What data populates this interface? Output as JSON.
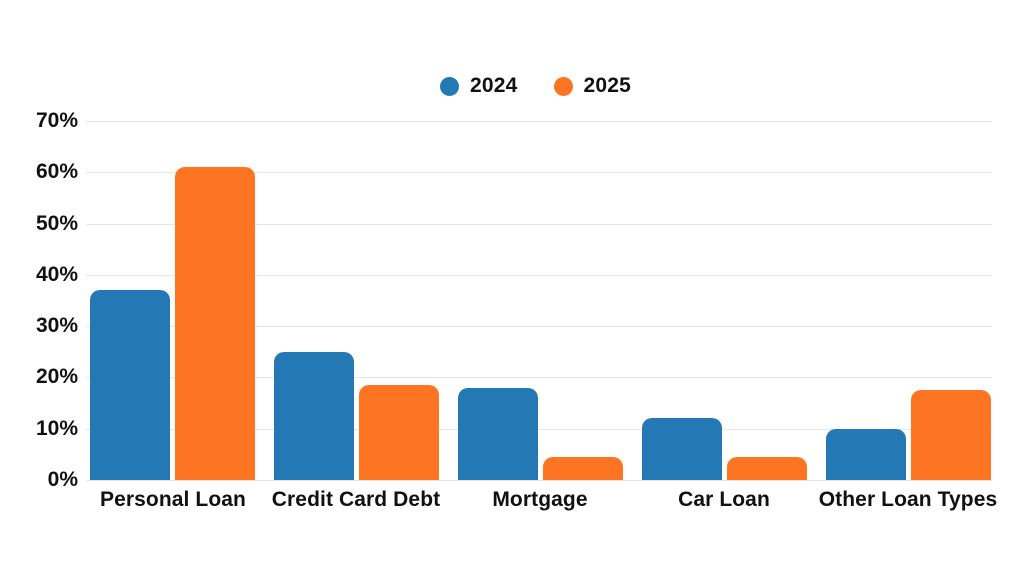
{
  "chart_data": {
    "type": "bar",
    "title": "",
    "categories": [
      "Personal Loan",
      "Credit Card Debt",
      "Mortgage",
      "Car Loan",
      "Other Loan Types"
    ],
    "series": [
      {
        "name": "2024",
        "color": "#2478b4",
        "values": [
          37,
          25,
          18,
          12,
          10
        ]
      },
      {
        "name": "2025",
        "color": "#fd7522",
        "values": [
          61,
          18.5,
          4.5,
          4.5,
          17.5
        ]
      }
    ],
    "ylim": [
      0,
      70
    ],
    "ytick_step": 10,
    "ytick_labels": [
      "0%",
      "10%",
      "20%",
      "30%",
      "40%",
      "50%",
      "60%",
      "70%"
    ],
    "xlabel": "",
    "ylabel": "",
    "grid": true,
    "legend_position": "top"
  },
  "colors": {
    "background": "#ffffff",
    "gridline": "#e5e5e5",
    "text": "#111111",
    "series_2024": "#2478b4",
    "series_2025": "#fd7522"
  }
}
